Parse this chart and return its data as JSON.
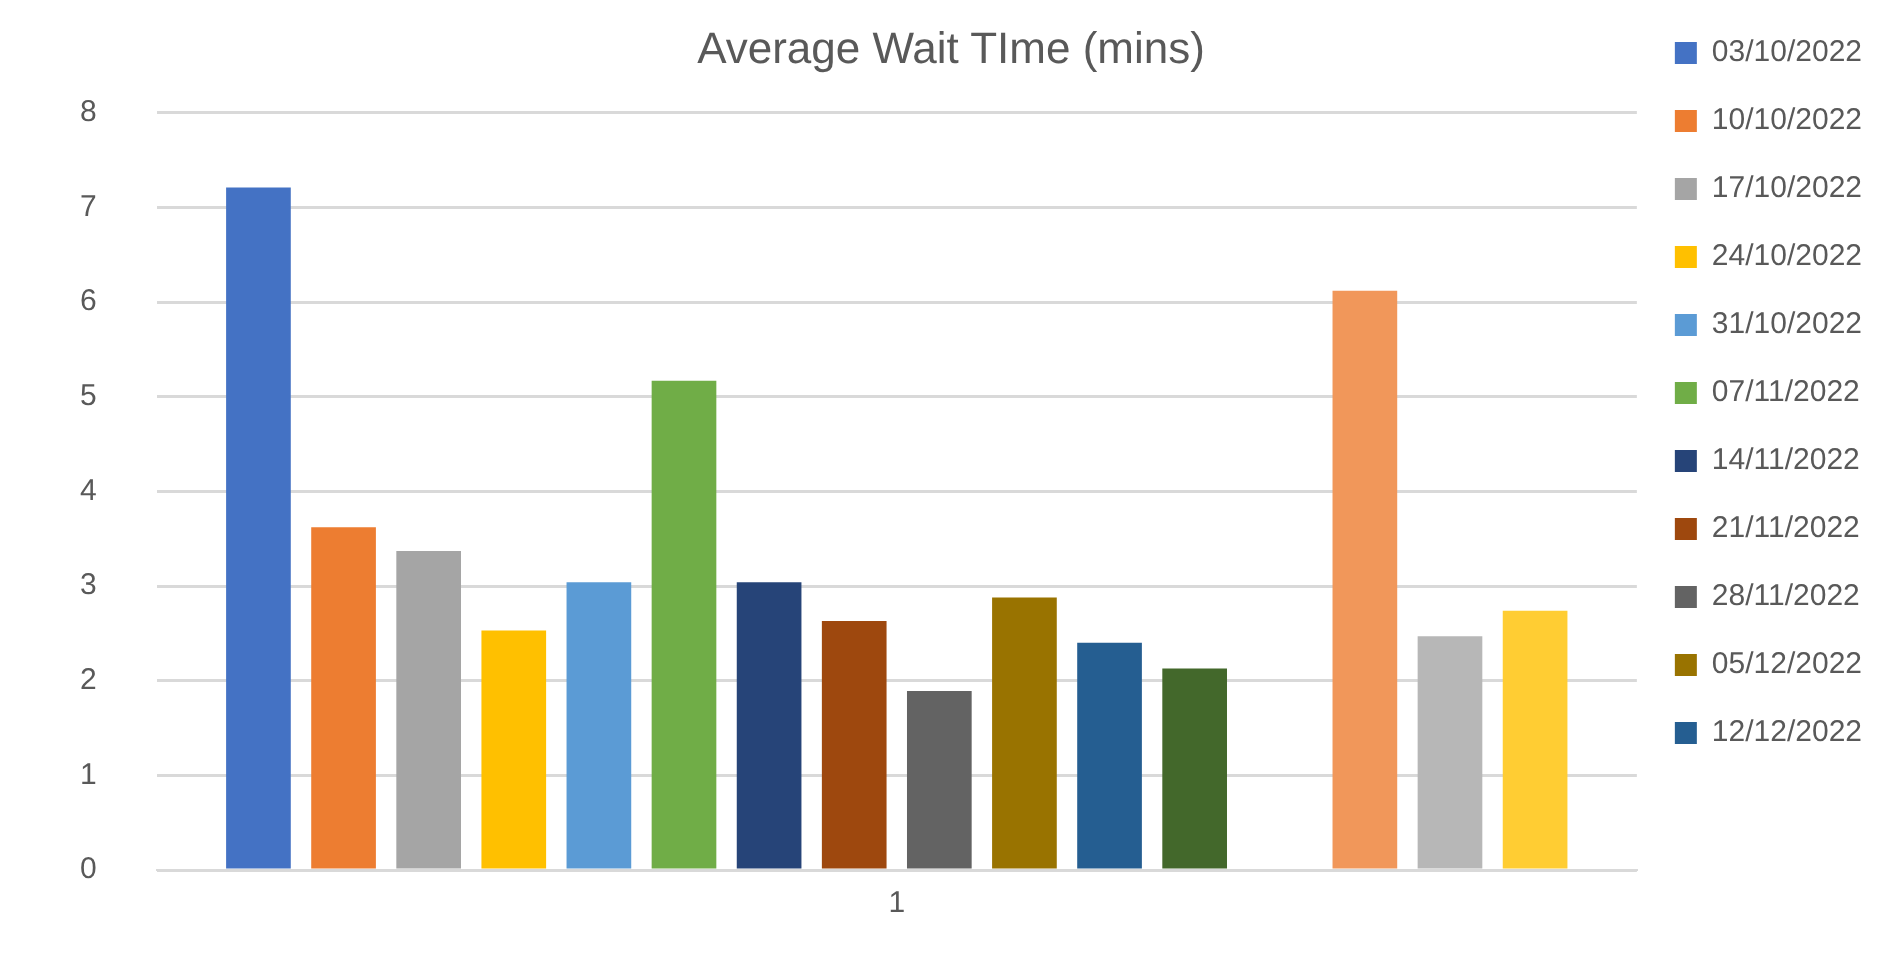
{
  "chart_data": {
    "type": "bar",
    "title": "Average Wait TIme (mins)",
    "categories": [
      "1"
    ],
    "series": [
      {
        "name": "03/10/2022",
        "color": "#4472c4",
        "values": [
          7.21
        ]
      },
      {
        "name": "10/10/2022",
        "color": "#ed7d31",
        "values": [
          3.62
        ]
      },
      {
        "name": "17/10/2022",
        "color": "#a5a5a5",
        "values": [
          3.37
        ]
      },
      {
        "name": "24/10/2022",
        "color": "#ffc000",
        "values": [
          2.53
        ]
      },
      {
        "name": "31/10/2022",
        "color": "#5b9bd5",
        "values": [
          3.04
        ]
      },
      {
        "name": "07/11/2022",
        "color": "#70ad47",
        "values": [
          5.17
        ]
      },
      {
        "name": "14/11/2022",
        "color": "#264478",
        "values": [
          3.04
        ]
      },
      {
        "name": "21/11/2022",
        "color": "#9e480e",
        "values": [
          2.63
        ]
      },
      {
        "name": "28/11/2022",
        "color": "#636363",
        "values": [
          1.89
        ]
      },
      {
        "name": "05/12/2022",
        "color": "#997300",
        "values": [
          2.88
        ]
      },
      {
        "name": "12/12/2022",
        "color": "#255e91",
        "values": [
          2.4
        ]
      },
      {
        "color": "#43682b",
        "values": [
          2.13
        ]
      },
      {
        "color": "#698ed0",
        "values": [
          null
        ]
      },
      {
        "color": "#f1975a",
        "values": [
          6.12
        ]
      },
      {
        "color": "#b7b7b7",
        "values": [
          2.47
        ]
      },
      {
        "color": "#ffcd33",
        "values": [
          2.74
        ]
      }
    ],
    "ylim": [
      0,
      8
    ],
    "yticks": [
      0,
      1,
      2,
      3,
      4,
      5,
      6,
      7,
      8
    ],
    "grid": "y",
    "legend": "right"
  }
}
